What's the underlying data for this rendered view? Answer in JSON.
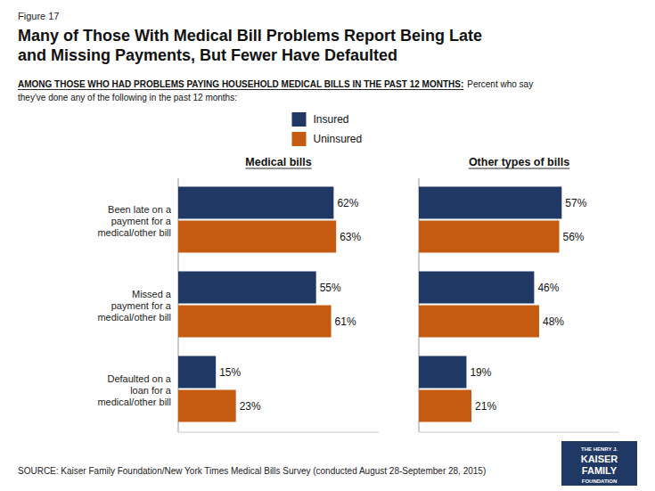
{
  "figure_label": "Figure 17",
  "title": "Many of Those With Medical Bill Problems Report Being Late\nand Missing Payments, But Fewer Have Defaulted",
  "subtitle": [
    "AMONG THOSE WHO HAD PROBLEMS PAYING HOUSEHOLD MEDICAL BILLS IN THE PAST 12 MONTHS:",
    "Percent who say",
    "they've done any of the following in the past 12 months:"
  ],
  "source": "SOURCE: Kaiser Family Foundation/New York Times Medical Bills Survey (conducted August 28-September 28, 2015)",
  "logo": [
    "THE HENRY J.",
    "KAISER",
    "FAMILY",
    "FOUNDATION"
  ],
  "chart_data": [
    {
      "type": "bar",
      "orientation": "horizontal",
      "title": "Medical bills",
      "categories": [
        "Been late on a\npayment for a\nmedical/other bill",
        "Missed a\npayment for a\nmedical/other bill",
        "Defaulted on a\nloan for a\nmedical/other bill"
      ],
      "series": [
        {
          "name": "Insured",
          "color": "#1f3864",
          "values": [
            62,
            55,
            15
          ],
          "value_labels": [
            "62%",
            "55%",
            "15%"
          ]
        },
        {
          "name": "Uninsured",
          "color": "#c55a11",
          "values": [
            63,
            61,
            23
          ],
          "value_labels": [
            "63%",
            "61%",
            "23%"
          ]
        }
      ],
      "xlim": [
        0,
        80
      ],
      "data_labels": true,
      "tick_labels": "y",
      "legend": "top"
    },
    {
      "type": "bar",
      "orientation": "horizontal",
      "title": "Other types of bills",
      "categories": [
        "Been late on a\npayment for a\nmedical/other bill",
        "Missed a\npayment for a\nmedical/other bill",
        "Defaulted on a\nloan for a\nmedical/other bill"
      ],
      "series": [
        {
          "name": "Insured",
          "color": "#1f3864",
          "values": [
            57,
            46,
            19
          ],
          "value_labels": [
            "57%",
            "46%",
            "19%"
          ]
        },
        {
          "name": "Uninsured",
          "color": "#c55a11",
          "values": [
            56,
            48,
            21
          ],
          "value_labels": [
            "56%",
            "48%",
            "21%"
          ]
        }
      ],
      "xlim": [
        0,
        80
      ],
      "data_labels": true,
      "tick_labels": false
    }
  ]
}
